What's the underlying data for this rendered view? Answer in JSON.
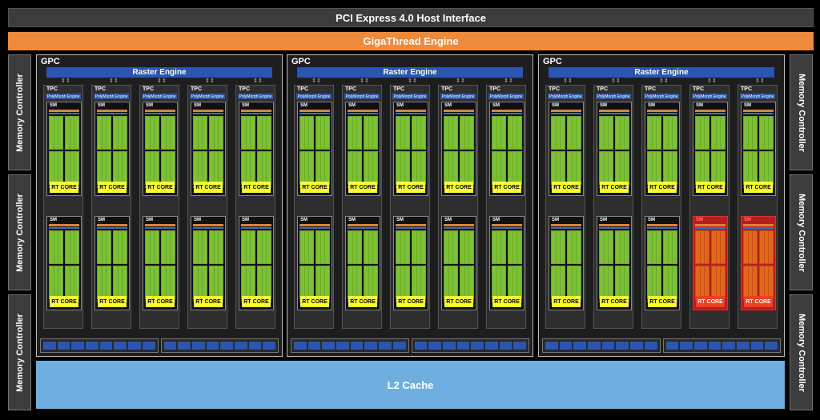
{
  "pcie_label": "PCI Express 4.0 Host Interface",
  "gigathread_label": "GigaThread Engine",
  "memory_controller_label": "Memory Controller",
  "l2_label": "L2 Cache",
  "gpc_label": "GPC",
  "raster_label": "Raster Engine",
  "tpc_label": "TPC",
  "polymorph_label": "PolyMorph Engine",
  "sm_label": "SM",
  "rt_core_label": "RT CORE",
  "colors": {
    "pcie": "#3c3c3c",
    "gigathread": "#ee8a3c",
    "l2": "#6faede",
    "raster": "#2a55b0",
    "rt_core": "#ffff33",
    "cuda_cores": "#7cc134",
    "highlight": "#b51e1e"
  },
  "gpc_count": 3,
  "tpcs_per_gpc": 5,
  "sms_per_tpc": 2,
  "highlighted_tpcs": [
    {
      "gpc": 3,
      "tpc": 4
    },
    {
      "gpc": 3,
      "tpc": 5
    }
  ]
}
